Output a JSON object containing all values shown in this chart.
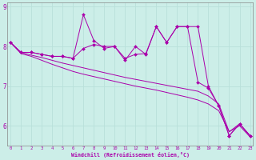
{
  "title": "",
  "xlabel": "Windchill (Refroidissement éolien,°C)",
  "bg_color": "#cceee8",
  "grid_color": "#b8e0da",
  "line_color": "#aa00aa",
  "hours": [
    0,
    1,
    2,
    3,
    4,
    5,
    6,
    7,
    8,
    9,
    10,
    11,
    12,
    13,
    14,
    15,
    16,
    17,
    18,
    19,
    20,
    21,
    22,
    23
  ],
  "series1": [
    8.1,
    7.85,
    7.85,
    7.8,
    7.75,
    7.75,
    7.7,
    8.8,
    8.15,
    7.95,
    8.0,
    7.65,
    8.0,
    7.8,
    8.5,
    8.1,
    8.5,
    8.5,
    8.5,
    7.0,
    6.5,
    5.75,
    6.05,
    5.75
  ],
  "series2": [
    8.1,
    7.85,
    7.85,
    7.8,
    7.75,
    7.75,
    7.7,
    7.95,
    8.05,
    8.0,
    8.0,
    7.7,
    7.8,
    7.82,
    8.5,
    8.1,
    8.5,
    8.5,
    7.1,
    6.95,
    6.5,
    5.75,
    6.05,
    5.75
  ],
  "series3": [
    8.1,
    7.85,
    7.78,
    7.72,
    7.65,
    7.58,
    7.52,
    7.46,
    7.4,
    7.34,
    7.28,
    7.22,
    7.17,
    7.12,
    7.07,
    7.02,
    6.97,
    6.92,
    6.87,
    6.75,
    6.55,
    5.85,
    6.05,
    5.75
  ],
  "series4": [
    8.1,
    7.82,
    7.75,
    7.65,
    7.55,
    7.46,
    7.37,
    7.3,
    7.24,
    7.18,
    7.12,
    7.06,
    7.0,
    6.95,
    6.9,
    6.84,
    6.78,
    6.72,
    6.65,
    6.55,
    6.38,
    5.85,
    6.0,
    5.72
  ],
  "ylim": [
    5.5,
    9.1
  ],
  "yticks": [
    6,
    7,
    8,
    9
  ],
  "xlim": [
    -0.3,
    23.3
  ]
}
